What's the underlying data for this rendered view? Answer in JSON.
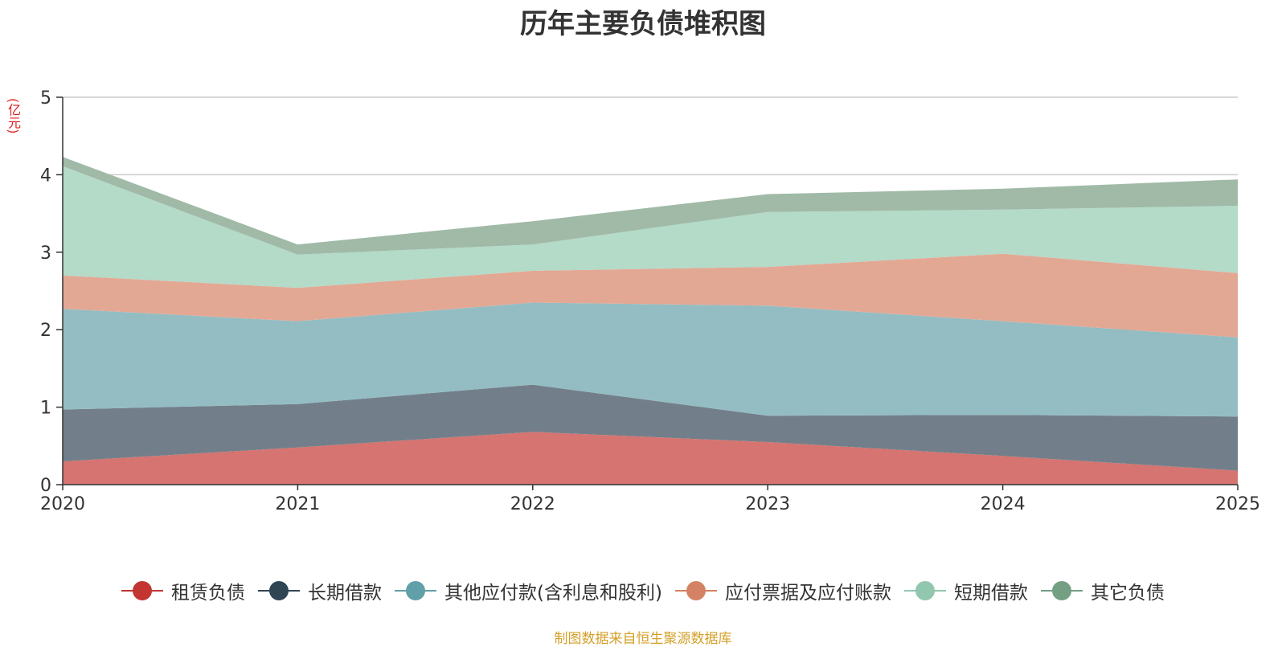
{
  "chart_data": {
    "type": "area",
    "stacked": true,
    "title": "历年主要负债堆积图",
    "unit_label": "(亿元)",
    "x": [
      "2020",
      "2021",
      "2022",
      "2023",
      "2024",
      "2025"
    ],
    "ylim": [
      0,
      5
    ],
    "yticks": [
      0,
      1,
      2,
      3,
      4,
      5
    ],
    "grid": true,
    "legend_position": "bottom",
    "series": [
      {
        "name": "租赁负债",
        "color": "#c23531",
        "fill": "#d4706b",
        "values": [
          0.3,
          0.48,
          0.68,
          0.55,
          0.37,
          0.18
        ]
      },
      {
        "name": "长期借款",
        "color": "#2f4554",
        "fill": "#6d7b86",
        "values": [
          0.67,
          0.56,
          0.61,
          0.34,
          0.53,
          0.7
        ]
      },
      {
        "name": "其他应付款(含利息和股利)",
        "color": "#61a0a8",
        "fill": "#91bbc1",
        "values": [
          1.3,
          1.07,
          1.06,
          1.42,
          1.21,
          1.02
        ]
      },
      {
        "name": "应付票据及应付账款",
        "color": "#d48265",
        "fill": "#e2a591",
        "values": [
          0.43,
          0.43,
          0.41,
          0.5,
          0.87,
          0.83
        ]
      },
      {
        "name": "短期借款",
        "color": "#91c7ae",
        "fill": "#b2d9c6",
        "values": [
          1.41,
          0.43,
          0.34,
          0.71,
          0.57,
          0.87
        ]
      },
      {
        "name": "其它负债",
        "color": "#749f83",
        "fill": "#9db8a4",
        "values": [
          0.12,
          0.13,
          0.3,
          0.23,
          0.27,
          0.34
        ]
      }
    ],
    "source": "制图数据来自恒生聚源数据库"
  }
}
